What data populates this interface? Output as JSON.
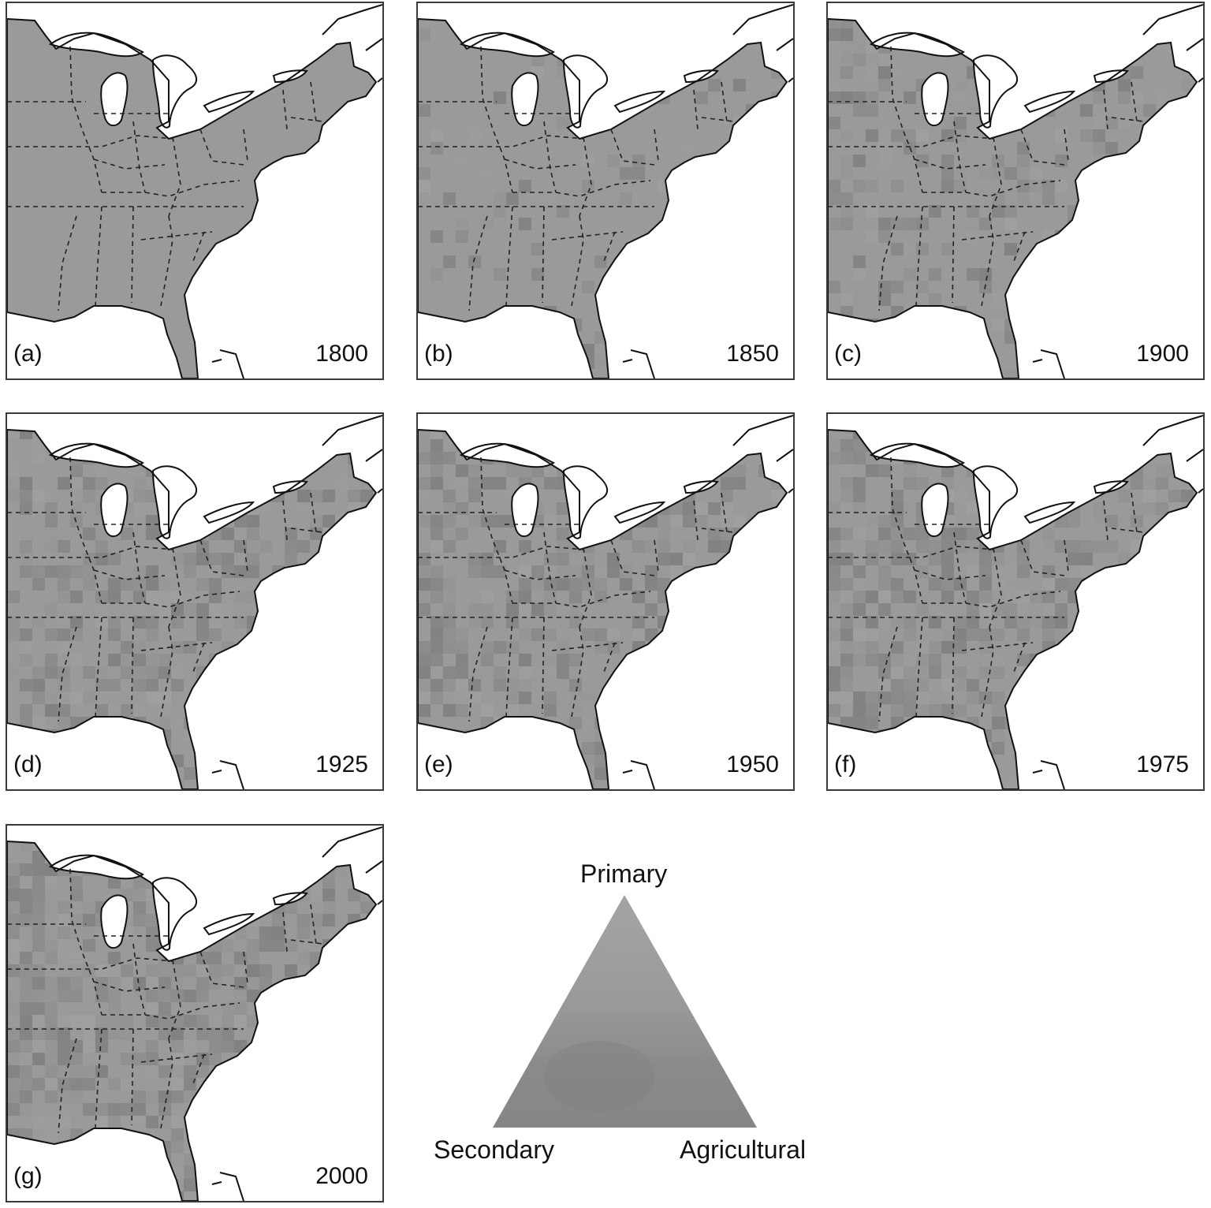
{
  "panels": [
    {
      "label": "(a)",
      "year": "1800"
    },
    {
      "label": "(b)",
      "year": "1850"
    },
    {
      "label": "(c)",
      "year": "1900"
    },
    {
      "label": "(d)",
      "year": "1925"
    },
    {
      "label": "(e)",
      "year": "1950"
    },
    {
      "label": "(f)",
      "year": "1975"
    },
    {
      "label": "(g)",
      "year": "2000"
    }
  ],
  "legend": {
    "top": "Primary",
    "left": "Secondary",
    "right": "Agricultural"
  },
  "colors": {
    "land": "#9a9a9a",
    "water": "#ffffff",
    "outline": "#111111"
  }
}
